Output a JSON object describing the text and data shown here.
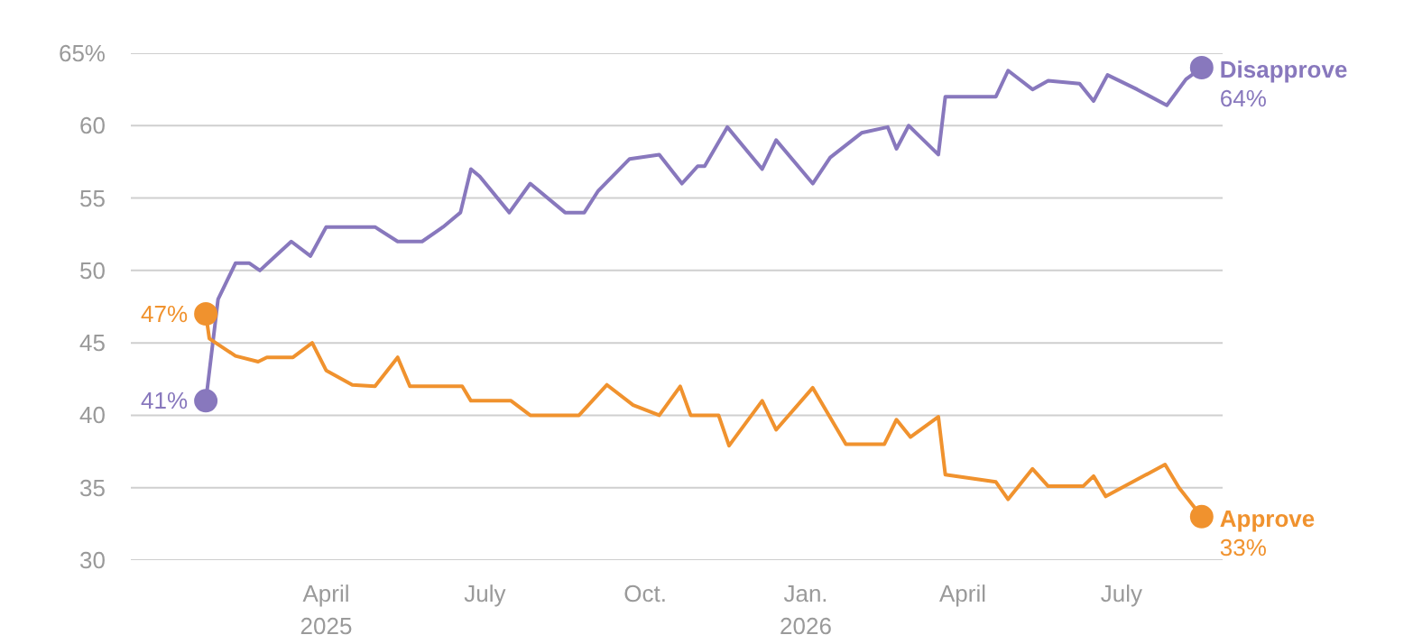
{
  "chart_data": {
    "type": "line",
    "ylim": [
      30,
      65
    ],
    "yticks": [
      30,
      35,
      40,
      45,
      50,
      55,
      60,
      {
        "value": 65,
        "label": "65%"
      }
    ],
    "xlim": [
      "2024-12-10",
      "2026-08-28"
    ],
    "xticks": [
      {
        "value": "2025-04-01",
        "label": "April\n2025"
      },
      {
        "value": "2025-07-01",
        "label": "July"
      },
      {
        "value": "2025-10-01",
        "label": "Oct."
      },
      {
        "value": "2026-01-01",
        "label": "Jan.\n2026"
      },
      {
        "value": "2026-04-01",
        "label": "April"
      },
      {
        "value": "2026-07-01",
        "label": "July"
      }
    ],
    "grid": "y",
    "marker": "none",
    "line_style": "solid",
    "series": [
      {
        "name": "Disapprove",
        "color": "#8878bd",
        "x": [
          "2025-01-22",
          "2025-01-29",
          "2025-02-08",
          "2025-02-16",
          "2025-02-22",
          "2025-03-03",
          "2025-03-12",
          "2025-03-23",
          "2025-04-01",
          "2025-04-29",
          "2025-05-12",
          "2025-05-26",
          "2025-06-07",
          "2025-06-17",
          "2025-06-23",
          "2025-06-28",
          "2025-07-15",
          "2025-07-27",
          "2025-08-16",
          "2025-08-27",
          "2025-09-04",
          "2025-09-22",
          "2025-10-09",
          "2025-10-22",
          "2025-10-31",
          "2025-11-04",
          "2025-11-17",
          "2025-12-07",
          "2025-12-15",
          "2026-01-05",
          "2026-01-15",
          "2026-02-02",
          "2026-02-17",
          "2026-02-22",
          "2026-03-01",
          "2026-03-18",
          "2026-03-22",
          "2026-04-20",
          "2026-04-27",
          "2026-05-11",
          "2026-05-20",
          "2026-06-07",
          "2026-06-15",
          "2026-06-23",
          "2026-07-10",
          "2026-07-27",
          "2026-08-07",
          "2026-08-16"
        ],
        "values": [
          41,
          48,
          50.5,
          50.5,
          50,
          51,
          52,
          51,
          53,
          53,
          52,
          52,
          53,
          54,
          57,
          56.5,
          54,
          56,
          54,
          54,
          55.5,
          57.7,
          58,
          56,
          57.2,
          57.2,
          59.9,
          57,
          59,
          56,
          57.8,
          59.5,
          59.9,
          58.4,
          60,
          58,
          62,
          62,
          63.8,
          62.5,
          63.1,
          62.9,
          61.7,
          63.5,
          62.5,
          61.4,
          63.2,
          64
        ],
        "value_labels": [
          "41%",
          null,
          null,
          null,
          null,
          null,
          null,
          null,
          null,
          null,
          null,
          null,
          null,
          null,
          null,
          null,
          null,
          null,
          null,
          null,
          null,
          null,
          null,
          null,
          null,
          null,
          null,
          null,
          null,
          null,
          null,
          null,
          null,
          null,
          null,
          null,
          null,
          null,
          null,
          null,
          null,
          null,
          null,
          null,
          null,
          null,
          null,
          "64%"
        ]
      },
      {
        "name": "Approve",
        "color": "#f0922e",
        "x": [
          "2025-01-22",
          "2025-01-24",
          "2025-02-08",
          "2025-02-21",
          "2025-02-26",
          "2025-03-13",
          "2025-03-24",
          "2025-04-01",
          "2025-04-16",
          "2025-04-29",
          "2025-05-12",
          "2025-05-19",
          "2025-06-18",
          "2025-06-23",
          "2025-07-16",
          "2025-07-27",
          "2025-08-24",
          "2025-09-09",
          "2025-09-24",
          "2025-10-09",
          "2025-10-21",
          "2025-10-27",
          "2025-11-12",
          "2025-11-18",
          "2025-12-07",
          "2025-12-15",
          "2026-01-05",
          "2026-01-24",
          "2026-02-15",
          "2026-02-22",
          "2026-03-02",
          "2026-03-18",
          "2026-03-22",
          "2026-04-20",
          "2026-04-27",
          "2026-05-11",
          "2026-05-20",
          "2026-06-09",
          "2026-06-15",
          "2026-06-22",
          "2026-07-26",
          "2026-08-03",
          "2026-08-16"
        ],
        "values": [
          47,
          45.3,
          44.1,
          43.7,
          44,
          44,
          45,
          43.1,
          42.1,
          42,
          44,
          42,
          42,
          41,
          41,
          40,
          40,
          42.1,
          40.7,
          40,
          42,
          40,
          40,
          37.9,
          41,
          39,
          41.9,
          38,
          38,
          39.7,
          38.5,
          39.9,
          35.9,
          35.4,
          34.2,
          36.3,
          35.1,
          35.1,
          35.8,
          34.4,
          36.6,
          35,
          33
        ],
        "value_labels": [
          "47%",
          null,
          null,
          null,
          null,
          null,
          null,
          null,
          null,
          null,
          null,
          null,
          null,
          null,
          null,
          null,
          null,
          null,
          null,
          null,
          null,
          null,
          null,
          null,
          null,
          null,
          null,
          null,
          null,
          null,
          null,
          null,
          null,
          null,
          null,
          null,
          null,
          null,
          null,
          null,
          null,
          null,
          "33%"
        ]
      }
    ]
  }
}
